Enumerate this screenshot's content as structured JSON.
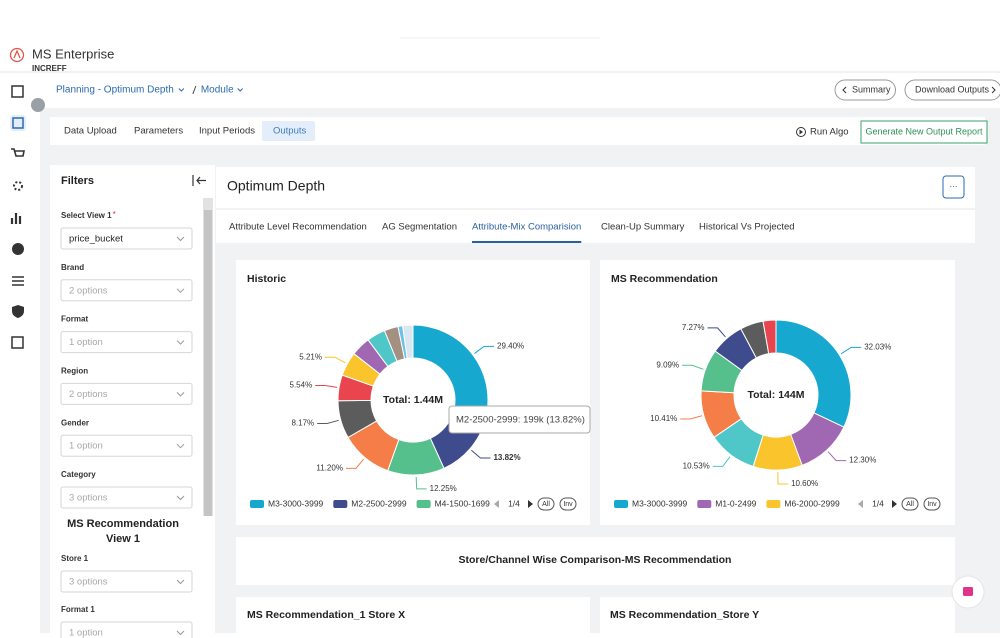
{
  "app": {
    "name": "MS Enterprise",
    "brand": "INCREFF"
  },
  "breadcrumb": [
    "Planning - Optimum Depth",
    "Module"
  ],
  "header_buttons": [
    "Summary",
    "Download Outputs"
  ],
  "tabs": [
    "Data Upload",
    "Parameters",
    "Input Periods",
    "Outputs"
  ],
  "actions": [
    "Run Algo",
    "Generate New Output Report"
  ],
  "filters": {
    "title": "Filters",
    "required_mark": "*",
    "fields": [
      {
        "label": "Select View 1",
        "value": "price_bucket"
      },
      {
        "label": "Brand",
        "value": "2 options"
      },
      {
        "label": "Format",
        "value": "1 option"
      },
      {
        "label": "Region",
        "value": "2 options"
      },
      {
        "label": "Gender",
        "value": "1 option"
      },
      {
        "label": "Category",
        "value": "3 options"
      }
    ],
    "section": "MS Recommendation View 1",
    "section_fields": [
      {
        "label": "Store 1",
        "value": "3 options"
      },
      {
        "label": "Format 1",
        "value": "1 option"
      }
    ]
  },
  "main": {
    "title": "Optimum Depth",
    "menu": "···",
    "subtabs": [
      "Attribute Level Recommendation",
      "AG Segmentation",
      "Attribute-Mix Comparision",
      "Clean-Up Summary",
      "Historical Vs Projected"
    ],
    "section_title": "Store/Channel Wise Comparison-MS Recommendation",
    "bottom_cards": [
      "MS Recommendation_1 Store X",
      "MS Recommendation_Store Y"
    ]
  },
  "chart_data": [
    {
      "type": "donut",
      "title": "Historic",
      "center_label": "Total: 1.44M",
      "categories": [
        "M3-3000-3999",
        "M2-2500-2999",
        "M4-1500-1699",
        null,
        null,
        null,
        null,
        null,
        null,
        null,
        null,
        null
      ],
      "values": [
        29.4,
        13.82,
        12.25,
        11.2,
        8.17,
        5.54,
        5.21,
        4.2,
        4.0,
        3.0,
        1.0,
        2.21
      ],
      "value_labels": [
        "29.40%",
        "13.82%",
        "12.25%",
        "11.20%",
        "8.17%",
        "5.54%",
        "5.21%",
        null,
        null,
        null,
        null,
        null
      ],
      "colors": [
        "#17a8cf",
        "#3e4b8c",
        "#56c08d",
        "#f47d48",
        "#5c5c5c",
        "#e8454f",
        "#fac42d",
        "#a067b2",
        "#4fc6c8",
        "#a39080",
        "#6cc1e6",
        "#d8e7f0"
      ],
      "legend": {
        "page": "1/4",
        "buttons": [
          "All",
          "Inv"
        ]
      },
      "tooltip": "M2-2500-2999: 199k (13.82%)"
    },
    {
      "type": "donut",
      "title": "MS Recommendation",
      "center_label": "Total: 144M",
      "categories": [
        "M3-3000-3999",
        "M1-0-2499",
        "M6-2000-2999",
        null,
        null,
        null,
        null,
        null,
        null
      ],
      "values": [
        32.03,
        12.3,
        10.6,
        10.53,
        10.41,
        9.09,
        7.27,
        5.0,
        2.77
      ],
      "value_labels": [
        "32.03%",
        "12.30%",
        "10.60%",
        "10.53%",
        "10.41%",
        "9.09%",
        "7.27%",
        null,
        null
      ],
      "colors": [
        "#17a8cf",
        "#a067b2",
        "#fac42d",
        "#4fc6c8",
        "#f47d48",
        "#56c08d",
        "#3e4b8c",
        "#5c5c5c",
        "#e8454f"
      ],
      "legend": {
        "page": "1/4",
        "buttons": [
          "All",
          "Inv"
        ]
      }
    }
  ]
}
